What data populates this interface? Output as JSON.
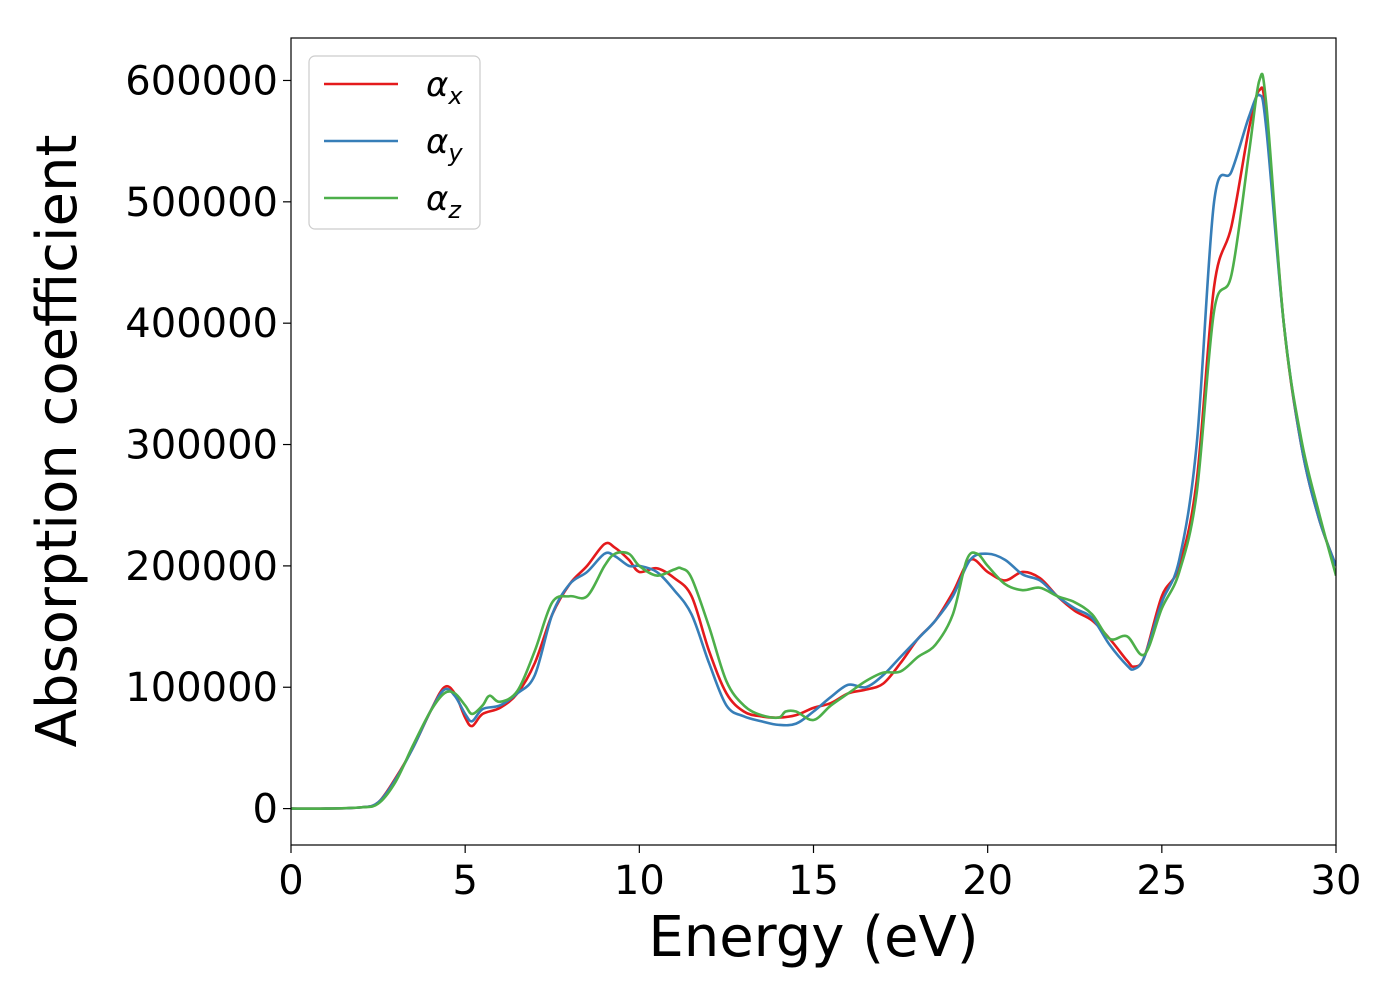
{
  "chart_data": {
    "type": "line",
    "xlabel": "Energy (eV)",
    "ylabel": "Absorption coefficient",
    "xlim": [
      0,
      30
    ],
    "ylim": [
      -30000,
      635000
    ],
    "xticks": [
      0,
      5,
      10,
      15,
      20,
      25,
      30
    ],
    "yticks": [
      0,
      100000,
      200000,
      300000,
      400000,
      500000,
      600000
    ],
    "grid": false,
    "legend_position": "top-left",
    "series": [
      {
        "name": "αx",
        "base": "α",
        "sub": "x",
        "color": "#e41a1c",
        "x": [
          0,
          1,
          2,
          2.5,
          3,
          3.5,
          4,
          4.4,
          4.7,
          5,
          5.2,
          5.5,
          6,
          6.5,
          7,
          7.5,
          8,
          8.5,
          9,
          9.3,
          9.7,
          10,
          10.5,
          11,
          11.5,
          12,
          12.5,
          13,
          13.5,
          14,
          14.5,
          15,
          15.5,
          16,
          16.5,
          17,
          17.5,
          18,
          18.5,
          19,
          19.5,
          20,
          20.5,
          21,
          21.5,
          22,
          22.5,
          23,
          23.5,
          24,
          24.2,
          24.5,
          25,
          25.5,
          26,
          26.5,
          27,
          27.5,
          27.8,
          28,
          28.5,
          29,
          29.5,
          30
        ],
        "y": [
          0,
          0,
          1000,
          5000,
          25000,
          50000,
          80000,
          100000,
          95000,
          75000,
          68000,
          78000,
          83000,
          95000,
          120000,
          160000,
          185000,
          200000,
          218000,
          215000,
          205000,
          195000,
          198000,
          190000,
          175000,
          130000,
          95000,
          80000,
          76000,
          75000,
          77000,
          83000,
          87000,
          95000,
          98000,
          103000,
          120000,
          140000,
          155000,
          178000,
          205000,
          195000,
          188000,
          195000,
          190000,
          175000,
          163000,
          155000,
          140000,
          122000,
          117000,
          125000,
          175000,
          200000,
          270000,
          430000,
          480000,
          560000,
          592000,
          570000,
          400000,
          300000,
          240000,
          200000
        ]
      },
      {
        "name": "αy",
        "base": "α",
        "sub": "y",
        "color": "#377eb8",
        "x": [
          0,
          1,
          2,
          2.5,
          3,
          3.5,
          4,
          4.4,
          4.7,
          5,
          5.2,
          5.5,
          6,
          6.5,
          7,
          7.5,
          8,
          8.5,
          9,
          9.3,
          9.7,
          10,
          10.5,
          11,
          11.5,
          12,
          12.5,
          13,
          13.5,
          14,
          14.5,
          15,
          15.5,
          16,
          16.5,
          17,
          17.5,
          18,
          18.5,
          19,
          19.5,
          20,
          20.5,
          21,
          21.5,
          22,
          22.5,
          23,
          23.5,
          24,
          24.2,
          24.5,
          25,
          25.5,
          26,
          26.5,
          27,
          27.5,
          27.8,
          28,
          28.5,
          29,
          29.5,
          30
        ],
        "y": [
          0,
          0,
          1000,
          5000,
          24000,
          50000,
          80000,
          98000,
          93000,
          78000,
          72000,
          82000,
          85000,
          95000,
          110000,
          160000,
          185000,
          195000,
          210000,
          208000,
          200000,
          200000,
          195000,
          180000,
          160000,
          120000,
          85000,
          76000,
          72000,
          69000,
          70000,
          80000,
          92000,
          102000,
          100000,
          110000,
          125000,
          140000,
          155000,
          175000,
          205000,
          210000,
          205000,
          193000,
          188000,
          175000,
          165000,
          157000,
          135000,
          118000,
          115000,
          125000,
          170000,
          205000,
          300000,
          500000,
          525000,
          570000,
          588000,
          560000,
          400000,
          300000,
          240000,
          200000
        ]
      },
      {
        "name": "αz",
        "base": "α",
        "sub": "z",
        "color": "#4daf4a",
        "x": [
          0,
          1,
          2,
          2.5,
          3,
          3.5,
          4,
          4.4,
          4.7,
          5,
          5.2,
          5.5,
          5.7,
          6,
          6.5,
          7,
          7.5,
          8,
          8.5,
          9,
          9.3,
          9.7,
          10,
          10.5,
          11,
          11.2,
          11.5,
          12,
          12.5,
          13,
          13.5,
          14,
          14.2,
          14.5,
          15,
          15.5,
          16,
          16.5,
          17,
          17.5,
          18,
          18.5,
          19,
          19.4,
          19.7,
          20,
          20.5,
          21,
          21.5,
          22,
          22.5,
          23,
          23.5,
          24,
          24.5,
          25,
          25.5,
          26,
          26.5,
          27,
          27.5,
          27.8,
          28,
          28.5,
          29,
          29.5,
          30
        ],
        "y": [
          0,
          0,
          1000,
          4000,
          22000,
          52000,
          80000,
          95000,
          95000,
          85000,
          78000,
          85000,
          93000,
          88000,
          97000,
          130000,
          170000,
          175000,
          175000,
          200000,
          210000,
          210000,
          200000,
          192000,
          197000,
          198000,
          190000,
          150000,
          105000,
          85000,
          77000,
          75000,
          80000,
          80000,
          73000,
          85000,
          95000,
          105000,
          112000,
          113000,
          125000,
          135000,
          160000,
          205000,
          210000,
          200000,
          185000,
          180000,
          182000,
          175000,
          170000,
          160000,
          140000,
          142000,
          127000,
          165000,
          195000,
          260000,
          410000,
          440000,
          540000,
          600000,
          580000,
          400000,
          305000,
          245000,
          192000
        ]
      }
    ]
  }
}
